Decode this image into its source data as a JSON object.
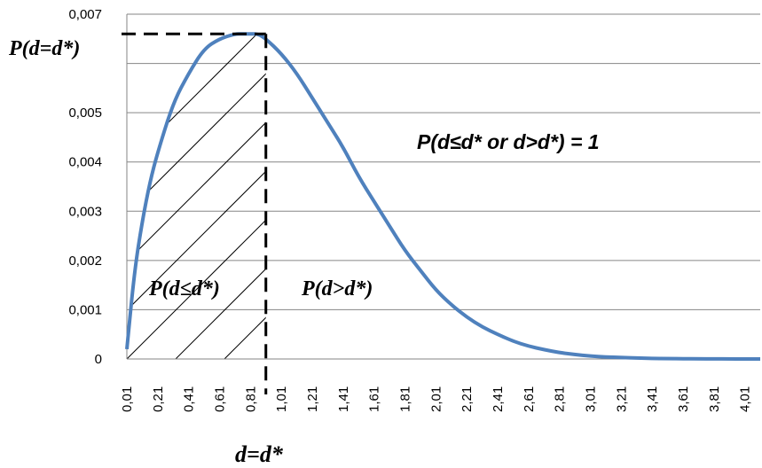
{
  "chart_data": {
    "type": "line",
    "x": [
      0.01,
      0.06,
      0.11,
      0.16,
      0.21,
      0.31,
      0.41,
      0.51,
      0.61,
      0.71,
      0.76,
      0.81,
      0.86,
      0.91,
      1.01,
      1.11,
      1.21,
      1.31,
      1.41,
      1.51,
      1.61,
      1.71,
      1.81,
      1.91,
      2.01,
      2.11,
      2.21,
      2.31,
      2.41,
      2.51,
      2.61,
      2.71,
      2.81,
      2.91,
      3.01,
      3.11,
      3.21,
      3.31,
      3.41,
      3.51,
      3.61,
      3.71,
      3.81,
      3.91,
      4.01,
      4.11
    ],
    "series": [
      {
        "values": [
          0.0002,
          0.0018,
          0.0028,
          0.0036,
          0.0042,
          0.0052,
          0.0058,
          0.0063,
          0.0065,
          0.0066,
          0.0066,
          0.0066,
          0.0066,
          0.0065,
          0.0062,
          0.0058,
          0.0053,
          0.0048,
          0.0043,
          0.0037,
          0.0032,
          0.0027,
          0.0022,
          0.0018,
          0.0014,
          0.0011,
          0.00085,
          0.00065,
          0.0005,
          0.00036,
          0.00026,
          0.00019,
          0.00013,
          9e-05,
          6e-05,
          4e-05,
          3e-05,
          2e-05,
          1e-05,
          1e-05,
          5e-06,
          3e-06,
          2e-06,
          1e-06,
          5e-07,
          3e-07
        ],
        "color": "#4f81bd"
      }
    ],
    "x_ticks": [
      "0,01",
      "0,21",
      "0,41",
      "0,61",
      "0,81",
      "1,01",
      "1,21",
      "1,41",
      "1,61",
      "1,81",
      "2,01",
      "2,21",
      "2,41",
      "2,61",
      "2,81",
      "3,01",
      "3,21",
      "3,41",
      "3,61",
      "3,81",
      "4,01"
    ],
    "y_ticks": [
      "0",
      "0,001",
      "0,002",
      "0,003",
      "0,004",
      "0,005",
      "",
      "0,007"
    ],
    "ylim": [
      0,
      0.007
    ],
    "xlim": [
      0.01,
      4.11
    ],
    "threshold_x": 0.91,
    "threshold_y": 0.0066,
    "grid": "horizontal",
    "annotations": {
      "p_eq": "P(d=d*)",
      "p_le": "P(d≤d*)",
      "p_gt": "P(d>d*)",
      "p_sum": "P(d≤d*  or  d>d*) = 1",
      "d_eq": "d=d*"
    }
  }
}
